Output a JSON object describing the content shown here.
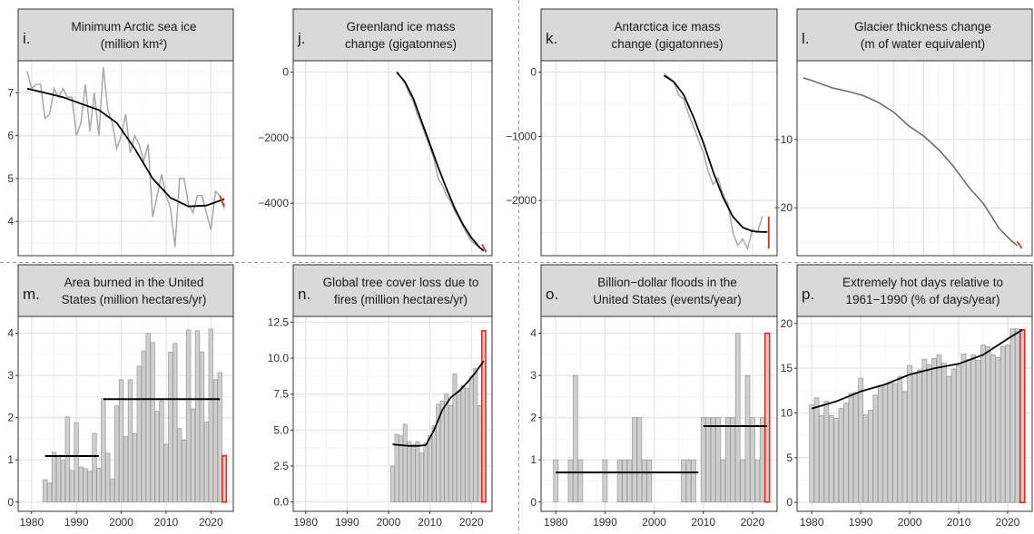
{
  "figure": {
    "x_ticks": [
      "1980",
      "1990",
      "2000",
      "2010",
      "2020"
    ]
  },
  "chart_data": [
    {
      "letter": "i.",
      "type": "line",
      "title": "Minimum Arctic sea ice",
      "title2": "(million km²)",
      "xlim": [
        1977,
        2025
      ],
      "ylim": [
        3.2,
        7.75
      ],
      "yticks": [
        4,
        5,
        6,
        7
      ],
      "ytick_labels": [
        "4",
        "5",
        "6",
        "7"
      ],
      "raw": {
        "x": [
          1979,
          1980,
          1981,
          1982,
          1983,
          1984,
          1985,
          1986,
          1987,
          1988,
          1989,
          1990,
          1991,
          1992,
          1993,
          1994,
          1995,
          1996,
          1997,
          1998,
          1999,
          2000,
          2001,
          2002,
          2003,
          2004,
          2005,
          2006,
          2007,
          2008,
          2009,
          2010,
          2011,
          2012,
          2013,
          2014,
          2015,
          2016,
          2017,
          2018,
          2019,
          2020,
          2021,
          2022,
          2023
        ],
        "y": [
          7.5,
          7.1,
          7.2,
          7.2,
          6.4,
          6.5,
          7.1,
          6.9,
          7.1,
          6.9,
          6.9,
          6.0,
          6.3,
          7.2,
          6.1,
          7.0,
          6.0,
          7.6,
          6.6,
          6.3,
          5.7,
          6.0,
          6.5,
          5.6,
          6.0,
          5.8,
          5.4,
          5.8,
          4.1,
          4.6,
          5.1,
          4.6,
          4.3,
          3.4,
          5.0,
          5.0,
          4.4,
          4.2,
          4.6,
          4.6,
          4.2,
          3.8,
          4.7,
          4.6,
          4.3
        ]
      },
      "smooth": {
        "x": [
          1979,
          1983,
          1987,
          1991,
          1995,
          1999,
          2003,
          2007,
          2011,
          2015,
          2019,
          2023
        ],
        "y": [
          7.1,
          7.0,
          6.9,
          6.75,
          6.6,
          6.3,
          5.7,
          5.0,
          4.55,
          4.35,
          4.37,
          4.52
        ]
      },
      "highlight": {
        "x": [
          2022,
          2023
        ],
        "y": [
          4.6,
          4.35
        ]
      }
    },
    {
      "letter": "j.",
      "type": "line",
      "title": "Greenland ice mass",
      "title2": "change (gigatonnes)",
      "xlim": [
        1977,
        2025
      ],
      "ylim": [
        -5600,
        350
      ],
      "yticks": [
        -4000,
        -2000,
        0
      ],
      "ytick_labels": [
        "−4000",
        "−2000",
        "0"
      ],
      "raw": {
        "x": [
          2002,
          2003,
          2004,
          2005,
          2006,
          2007,
          2008,
          2009,
          2010,
          2011,
          2012,
          2013,
          2014,
          2015,
          2016,
          2017,
          2018,
          2019,
          2020,
          2021,
          2022
        ],
        "y": [
          0,
          -150,
          -350,
          -650,
          -900,
          -1300,
          -1600,
          -1950,
          -2300,
          -2650,
          -3250,
          -3450,
          -3750,
          -3950,
          -4250,
          -4450,
          -4700,
          -4950,
          -5150,
          -5250,
          -5350
        ]
      },
      "smooth": {
        "x": [
          2002,
          2004,
          2006,
          2008,
          2010,
          2012,
          2014,
          2016,
          2018,
          2020,
          2022,
          2023
        ],
        "y": [
          0,
          -300,
          -800,
          -1500,
          -2200,
          -2900,
          -3550,
          -4150,
          -4650,
          -5050,
          -5350,
          -5450
        ]
      },
      "highlight": {
        "x": [
          2022.6,
          2023.6
        ],
        "y": [
          -5250,
          -5500
        ]
      }
    },
    {
      "letter": "k.",
      "type": "line",
      "title": "Antarctica ice mass",
      "title2": "change (gigatonnes)",
      "xlim": [
        1977,
        2025
      ],
      "ylim": [
        -2860,
        180
      ],
      "yticks": [
        -2000,
        -1000,
        0
      ],
      "ytick_labels": [
        "−2000",
        "−1000",
        "0"
      ],
      "raw": {
        "x": [
          2002,
          2003,
          2004,
          2005,
          2006,
          2007,
          2008,
          2009,
          2010,
          2011,
          2012,
          2013,
          2014,
          2015,
          2016,
          2017,
          2018,
          2019,
          2020,
          2021,
          2022
        ],
        "y": [
          -20,
          -80,
          -160,
          -350,
          -420,
          -650,
          -850,
          -1050,
          -1250,
          -1550,
          -1750,
          -1650,
          -1900,
          -2050,
          -2500,
          -2700,
          -2600,
          -2750,
          -2450,
          -2500,
          -2250
        ]
      },
      "smooth": {
        "x": [
          2002,
          2004,
          2006,
          2008,
          2010,
          2012,
          2014,
          2016,
          2018,
          2020,
          2022,
          2023
        ],
        "y": [
          -50,
          -150,
          -350,
          -700,
          -1100,
          -1550,
          -1950,
          -2250,
          -2420,
          -2480,
          -2490,
          -2490
        ]
      },
      "highlight": {
        "x": [
          2023.3,
          2023.3
        ],
        "y": [
          -2250,
          -2750
        ]
      }
    },
    {
      "letter": "l.",
      "type": "line",
      "title": "Glacier thickness change",
      "title2": "(m of water equivalent)",
      "xlim": [
        1948,
        2026
      ],
      "ylim": [
        -27,
        1.5
      ],
      "yticks": [
        -20,
        -10
      ],
      "ytick_labels": [
        "−20",
        "−10"
      ],
      "series": {
        "x": [
          1950,
          1953,
          1956,
          1960,
          1965,
          1970,
          1975,
          1980,
          1985,
          1990,
          1995,
          2000,
          2005,
          2010,
          2015,
          2019,
          2021
        ],
        "y": [
          -1.0,
          -1.4,
          -1.9,
          -2.5,
          -3.0,
          -3.6,
          -4.6,
          -6.0,
          -8.0,
          -9.5,
          -11.5,
          -14.0,
          -17.0,
          -19.5,
          -23.0,
          -24.8,
          -25.5
        ]
      },
      "highlight": {
        "x": [
          2021,
          2022.5
        ],
        "y": [
          -24.9,
          -25.9
        ]
      }
    },
    {
      "letter": "m.",
      "type": "bar",
      "title": "Area burned in the United",
      "title2": "States (million hectares/yr)",
      "xlim": [
        1977,
        2025
      ],
      "ylim": [
        -0.22,
        4.4
      ],
      "yticks": [
        0,
        1,
        2,
        3,
        4
      ],
      "ytick_labels": [
        "0",
        "1",
        "2",
        "3",
        "4"
      ],
      "bars": {
        "x": [
          1983,
          1984,
          1985,
          1986,
          1987,
          1988,
          1989,
          1990,
          1991,
          1992,
          1993,
          1994,
          1995,
          1996,
          1997,
          1998,
          1999,
          2000,
          2001,
          2002,
          2003,
          2004,
          2005,
          2006,
          2007,
          2008,
          2009,
          2010,
          2011,
          2012,
          2013,
          2014,
          2015,
          2016,
          2017,
          2018,
          2019,
          2020,
          2021,
          2022
        ],
        "y": [
          0.53,
          0.45,
          1.18,
          1.1,
          0.99,
          2.02,
          0.75,
          1.88,
          0.83,
          0.79,
          0.73,
          1.63,
          0.8,
          2.45,
          1.16,
          0.55,
          2.28,
          2.9,
          1.55,
          2.9,
          1.62,
          3.22,
          3.58,
          4.0,
          3.78,
          2.15,
          2.4,
          1.37,
          3.55,
          3.76,
          1.74,
          1.47,
          4.08,
          2.21,
          4.06,
          3.56,
          1.9,
          4.1,
          2.9,
          3.07
        ]
      },
      "highlight_bar": {
        "x": 2023,
        "y": 1.1
      },
      "segments": [
        {
          "x0": 1983,
          "x1": 1995,
          "y": 1.09
        },
        {
          "x0": 1996,
          "x1": 2022,
          "y": 2.44
        }
      ]
    },
    {
      "letter": "n.",
      "type": "bar",
      "title": "Global tree cover loss due to",
      "title2": "fires (million hectares/yr)",
      "xlim": [
        1977,
        2025
      ],
      "ylim": [
        -0.65,
        12.9
      ],
      "yticks": [
        0,
        2.5,
        5,
        7.5,
        10,
        12.5
      ],
      "ytick_labels": [
        "0.0",
        "2.5",
        "5.0",
        "7.5",
        "10.0",
        "12.5"
      ],
      "bars": {
        "x": [
          2001,
          2002,
          2003,
          2004,
          2005,
          2006,
          2007,
          2008,
          2009,
          2010,
          2011,
          2012,
          2013,
          2014,
          2015,
          2016,
          2017,
          2018,
          2019,
          2020,
          2021,
          2022
        ],
        "y": [
          2.5,
          4.7,
          4.6,
          5.4,
          4.2,
          4.0,
          4.2,
          3.4,
          4.1,
          4.6,
          5.3,
          6.8,
          7.0,
          7.5,
          6.7,
          8.9,
          7.7,
          8.1,
          7.9,
          8.7,
          9.3,
          6.7
        ]
      },
      "highlight_bar": {
        "x": 2023,
        "y": 11.9
      },
      "smooth": {
        "x": [
          2001,
          2003,
          2005,
          2007,
          2009,
          2011,
          2013,
          2015,
          2017,
          2019,
          2021,
          2023
        ],
        "y": [
          4.0,
          3.95,
          3.9,
          3.9,
          3.95,
          5.0,
          6.4,
          7.25,
          7.7,
          8.3,
          9.0,
          9.8
        ]
      }
    },
    {
      "letter": "o.",
      "type": "bar",
      "title": "Billion−dollar floods in the",
      "title2": "United States (events/year)",
      "xlim": [
        1977,
        2025
      ],
      "ylim": [
        -0.22,
        4.4
      ],
      "yticks": [
        0,
        1,
        2,
        3,
        4
      ],
      "ytick_labels": [
        "0",
        "1",
        "2",
        "3",
        "4"
      ],
      "bars": {
        "x": [
          1980,
          1983,
          1984,
          1985,
          1990,
          1993,
          1994,
          1995,
          1996,
          1997,
          1998,
          1999,
          2006,
          2007,
          2008,
          2010,
          2011,
          2012,
          2013,
          2014,
          2015,
          2016,
          2017,
          2018,
          2019,
          2020,
          2021,
          2022
        ],
        "y": [
          1,
          1,
          3,
          1,
          1,
          1,
          1,
          1,
          2,
          2,
          1,
          1,
          1,
          1,
          1,
          2,
          2,
          2,
          2,
          1,
          2,
          2,
          4,
          1,
          3,
          2,
          1,
          2
        ]
      },
      "highlight_bar": {
        "x": 2023,
        "y": 4
      },
      "segments": [
        {
          "x0": 1980,
          "x1": 2009,
          "y": 0.7
        },
        {
          "x0": 2010,
          "x1": 2023,
          "y": 1.8
        }
      ]
    },
    {
      "letter": "p.",
      "type": "bar",
      "title": "Extremely hot days relative to",
      "title2": "1961−1990 (% of days/year)",
      "xlim": [
        1977,
        2025
      ],
      "ylim": [
        -1,
        20.8
      ],
      "yticks": [
        0,
        5,
        10,
        15,
        20
      ],
      "ytick_labels": [
        "0",
        "5",
        "10",
        "15",
        "20"
      ],
      "bars": {
        "x": [
          1980,
          1981,
          1982,
          1983,
          1984,
          1985,
          1986,
          1987,
          1988,
          1989,
          1990,
          1991,
          1992,
          1993,
          1994,
          1995,
          1996,
          1997,
          1998,
          1999,
          2000,
          2001,
          2002,
          2003,
          2004,
          2005,
          2006,
          2007,
          2008,
          2009,
          2010,
          2011,
          2012,
          2013,
          2014,
          2015,
          2016,
          2017,
          2018,
          2019,
          2020,
          2021,
          2022
        ],
        "y": [
          10.9,
          11.7,
          9.7,
          11.3,
          9.7,
          9.4,
          10.5,
          11.1,
          12.2,
          12.3,
          13.9,
          9.8,
          10.3,
          12.0,
          13.1,
          13.2,
          13.4,
          13.3,
          14.1,
          12.4,
          15.3,
          14.5,
          14.8,
          16.0,
          15.4,
          16.1,
          16.5,
          15.6,
          14.1,
          14.9,
          15.3,
          16.6,
          16.0,
          16.5,
          15.9,
          17.6,
          17.4,
          16.5,
          16.2,
          17.4,
          17.6,
          19.4,
          19.4
        ]
      },
      "highlight_bar": {
        "x": 2023,
        "y": 19.3
      },
      "smooth": {
        "x": [
          1980,
          1985,
          1990,
          1995,
          2000,
          2005,
          2010,
          2015,
          2020,
          2023
        ],
        "y": [
          10.5,
          11.3,
          12.4,
          13.2,
          14.3,
          15.0,
          15.5,
          16.5,
          18.3,
          19.3
        ]
      }
    }
  ]
}
